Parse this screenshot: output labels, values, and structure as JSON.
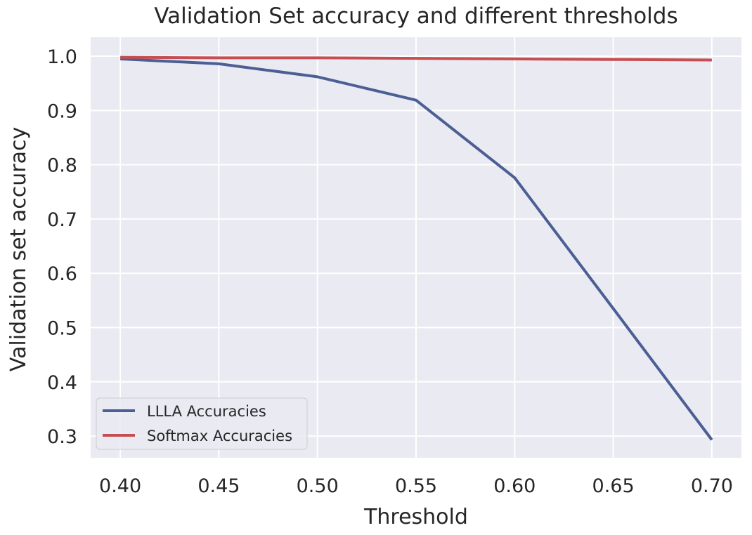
{
  "chart_data": {
    "type": "line",
    "title": "Validation Set accuracy and different thresholds",
    "xlabel": "Threshold",
    "ylabel": "Validation set accuracy",
    "x": [
      0.4,
      0.45,
      0.5,
      0.55,
      0.6,
      0.65,
      0.7
    ],
    "xlim": [
      0.385,
      0.715
    ],
    "ylim": [
      0.26,
      1.035
    ],
    "xticks": [
      0.4,
      0.45,
      0.5,
      0.55,
      0.6,
      0.65,
      0.7
    ],
    "xtick_labels": [
      "0.40",
      "0.45",
      "0.50",
      "0.55",
      "0.60",
      "0.65",
      "0.70"
    ],
    "yticks": [
      0.3,
      0.4,
      0.5,
      0.6,
      0.7,
      0.8,
      0.9,
      1.0
    ],
    "ytick_labels": [
      "0.3",
      "0.4",
      "0.5",
      "0.6",
      "0.7",
      "0.8",
      "0.9",
      "1.0"
    ],
    "grid": true,
    "background_color": "#eaeaf2",
    "grid_color": "#ffffff",
    "legend_position": "lower-left",
    "series": [
      {
        "name": "LLLA Accuracies",
        "color": "#4c5f94",
        "values": [
          0.995,
          0.986,
          0.962,
          0.919,
          0.776,
          0.535,
          0.293
        ]
      },
      {
        "name": "Softmax Accuracies",
        "color": "#c44e52",
        "values": [
          0.998,
          0.997,
          0.997,
          0.996,
          0.995,
          0.994,
          0.993
        ]
      }
    ]
  }
}
